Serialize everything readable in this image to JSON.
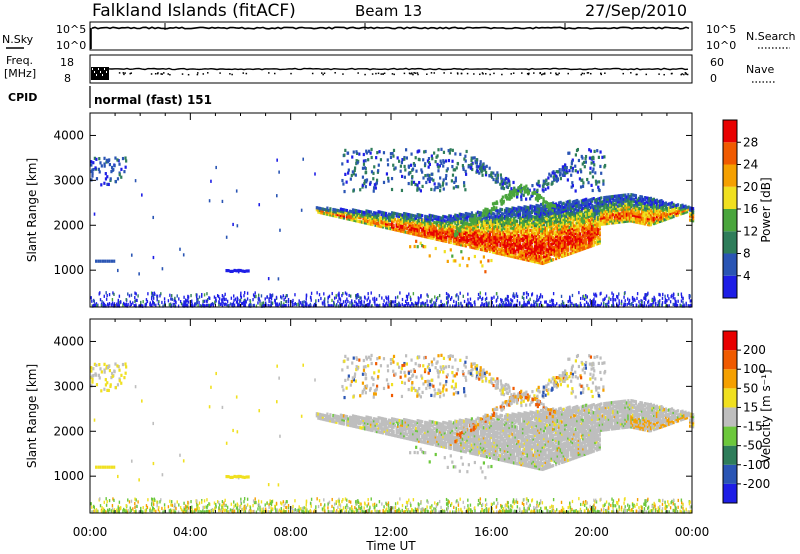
{
  "header": {
    "station": "Falkland Islands (fitACF)",
    "beam": "Beam 13",
    "date": "27/Sep/2010"
  },
  "strips": {
    "nsky_label": "N.Sky",
    "nsky_ticks": [
      "10^5",
      "10^0"
    ],
    "nsearch_label": "N.Search",
    "nsearch_ticks": [
      "10^5",
      "10^0"
    ],
    "freq_label": "Freq.",
    "freq_unit": "[MHz]",
    "freq_ticks": [
      "18",
      "8"
    ],
    "nave_label": "Nave",
    "nave_ticks": [
      "60",
      "0"
    ],
    "cpid_label": "CPID",
    "cpid_value": "normal (fast) 151"
  },
  "chart_data": [
    {
      "type": "heatmap",
      "panel": "power",
      "ylabel": "Slant Range [km]",
      "ylim": [
        180,
        4500
      ],
      "y_ticks": [
        1000,
        2000,
        3000,
        4000
      ],
      "x_ticks": [
        "00:00",
        "04:00",
        "08:00",
        "12:00",
        "16:00",
        "20:00",
        "00:00"
      ],
      "xlim_hours": [
        0,
        24
      ],
      "colorbar": {
        "label": "Power [dB]",
        "ticks": [
          "28",
          "24",
          "20",
          "16",
          "12",
          "8",
          "4"
        ],
        "colors": [
          "#1e1ee6",
          "#2a55b4",
          "#2e7d5a",
          "#4aa53c",
          "#f0e020",
          "#f5a000",
          "#f05a00",
          "#e80000"
        ]
      },
      "echo_regions": [
        {
          "name": "main band",
          "t_start": 9.0,
          "t_end": 24.0,
          "range_km": [
            1000,
            2500
          ],
          "power_db": [
            8,
            28
          ]
        },
        {
          "name": "upper scatter",
          "t_start": 10.0,
          "t_end": 20.5,
          "range_km": [
            2700,
            3700
          ],
          "power_db": [
            4,
            12
          ]
        },
        {
          "name": "early patch",
          "t_start": 0.0,
          "t_end": 1.5,
          "range_km": [
            2900,
            3500
          ],
          "power_db": [
            4,
            10
          ]
        },
        {
          "name": "ground scatter",
          "t_start": 0.0,
          "t_end": 24.0,
          "range_km": [
            180,
            400
          ],
          "power_db": [
            4,
            8
          ]
        }
      ]
    },
    {
      "type": "heatmap",
      "panel": "velocity",
      "ylabel": "Slant Range [km]",
      "ylim": [
        180,
        4500
      ],
      "y_ticks": [
        1000,
        2000,
        3000,
        4000
      ],
      "x_ticks": [
        "00:00",
        "04:00",
        "08:00",
        "12:00",
        "16:00",
        "20:00",
        "00:00"
      ],
      "xlabel": "Time UT",
      "xlim_hours": [
        0,
        24
      ],
      "colorbar": {
        "label": "Velocity [m s⁻¹]",
        "ticks": [
          "200",
          "100",
          "50",
          "15",
          "-15",
          "-50",
          "-100",
          "-200"
        ],
        "colors": [
          "#1e1ee6",
          "#2a55b4",
          "#2e7d5a",
          "#6cc83c",
          "#bebebe",
          "#f0e020",
          "#f5a000",
          "#f05a00",
          "#e80000"
        ]
      },
      "echo_regions": [
        {
          "name": "main band",
          "t_start": 9.0,
          "t_end": 24.0,
          "range_km": [
            1000,
            2500
          ],
          "velocity": "ground scatter (-15..15)"
        },
        {
          "name": "upper scatter",
          "t_start": 10.0,
          "t_end": 20.5,
          "range_km": [
            2700,
            3700
          ],
          "velocity": "mixed"
        },
        {
          "name": "ground scatter",
          "t_start": 0.0,
          "t_end": 24.0,
          "range_km": [
            180,
            400
          ],
          "velocity": "15..100"
        }
      ]
    }
  ]
}
